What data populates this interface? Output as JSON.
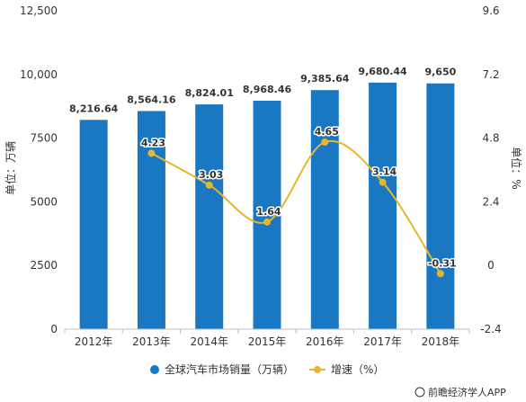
{
  "chart_data": {
    "type": "bar",
    "categories": [
      "2012年",
      "2013年",
      "2014年",
      "2015年",
      "2016年",
      "2017年",
      "2018年"
    ],
    "series": [
      {
        "name": "全球汽车市场销量（万辆）",
        "type": "bar",
        "axis": "left",
        "values": [
          8216.64,
          8564.16,
          8824.01,
          8968.46,
          9385.64,
          9680.44,
          9650
        ],
        "labels": [
          "8,216.64",
          "8,564.16",
          "8,824.01",
          "8,968.46",
          "9,385.64",
          "9,680.44",
          "9,650"
        ],
        "color": "#1a78c2"
      },
      {
        "name": "增速（%）",
        "type": "line",
        "axis": "right",
        "smooth": true,
        "values": [
          null,
          4.23,
          3.03,
          1.64,
          4.65,
          3.14,
          -0.31
        ],
        "labels": [
          "",
          "4.23",
          "3.03",
          "1.64",
          "4.65",
          "3.14",
          "-0.31"
        ],
        "color": "#e8b52c"
      }
    ],
    "ylabel": "单位：万辆",
    "y2label": "单位：%",
    "ylim": [
      0,
      12500
    ],
    "yticks": [
      0,
      2500,
      5000,
      7500,
      10000,
      12500
    ],
    "ytick_labels": [
      "0",
      "2500",
      "5000",
      "7500",
      "10,000",
      "12,500"
    ],
    "y2lim": [
      -2.4,
      9.6
    ],
    "y2ticks": [
      -2.4,
      0,
      2.4,
      4.8,
      7.2,
      9.6
    ],
    "y2tick_labels": [
      "-2.4",
      "0",
      "2.4",
      "4.8",
      "7.2",
      "9.6"
    ],
    "legend_position": "bottom",
    "grid": false
  },
  "watermark": "前瞻经济学人APP"
}
